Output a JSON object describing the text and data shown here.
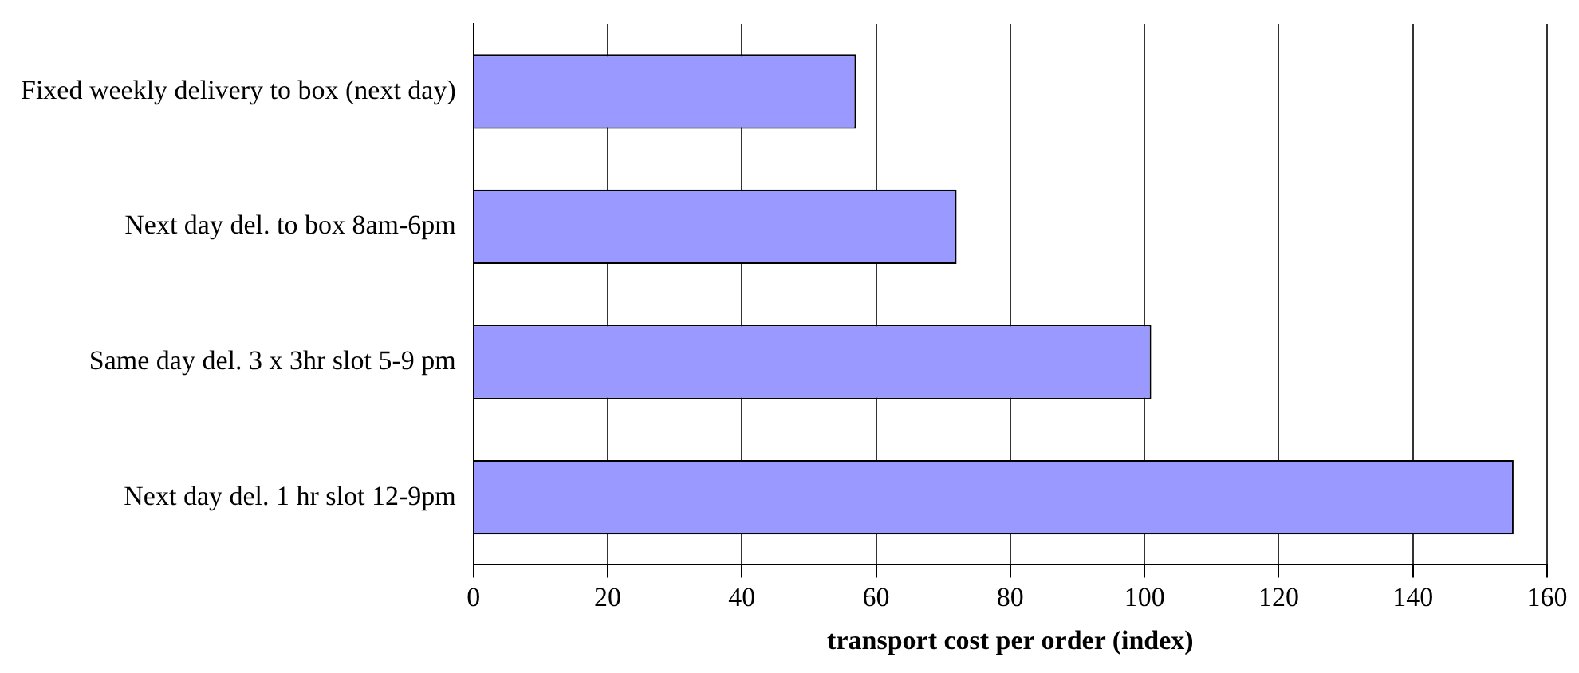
{
  "chart_data": {
    "type": "bar",
    "orientation": "horizontal",
    "xlabel": "transport cost per order (index)",
    "categories": [
      "Fixed weekly delivery to box (next day)",
      "Next day del. to box 8am-6pm",
      "Same day del. 3 x 3hr slot 5-9 pm",
      "Next day del. 1 hr slot 12-9pm"
    ],
    "values": [
      57,
      72,
      101,
      155
    ],
    "color": "#9999ff",
    "xlim": [
      0,
      160
    ],
    "xticks": [
      0,
      20,
      40,
      60,
      80,
      100,
      120,
      140,
      160
    ],
    "grid": "x",
    "legend": false
  }
}
